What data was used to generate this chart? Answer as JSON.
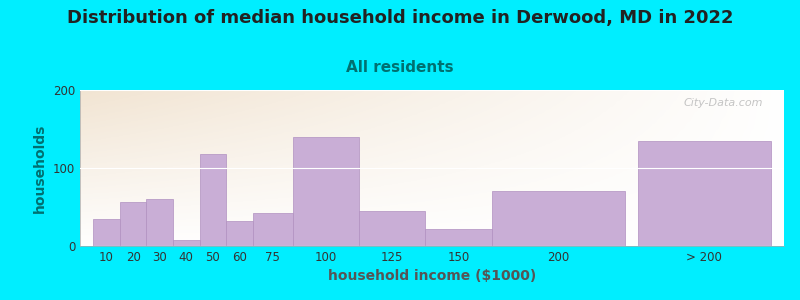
{
  "title": "Distribution of median household income in Derwood, MD in 2022",
  "subtitle": "All residents",
  "xlabel": "household income ($1000)",
  "ylabel": "households",
  "background_outer": "#00eeff",
  "bar_color": "#c9aed6",
  "bar_edge_color": "#b090c0",
  "categories": [
    "10",
    "20",
    "30",
    "40",
    "50",
    "60",
    "75",
    "100",
    "125",
    "150",
    "200",
    "> 200"
  ],
  "values": [
    35,
    57,
    60,
    8,
    118,
    32,
    42,
    140,
    45,
    22,
    70,
    135
  ],
  "widths": [
    10,
    10,
    10,
    10,
    10,
    10,
    15,
    25,
    25,
    25,
    50,
    50
  ],
  "lefts": [
    5,
    15,
    25,
    35,
    45,
    55,
    65,
    80,
    105,
    130,
    155,
    210
  ],
  "xlim": [
    0,
    265
  ],
  "ylim": [
    0,
    200
  ],
  "yticks": [
    0,
    100,
    200
  ],
  "title_fontsize": 13,
  "subtitle_fontsize": 11,
  "axis_label_fontsize": 10,
  "tick_fontsize": 8.5,
  "watermark_text": "City-Data.com",
  "title_color": "#222222",
  "subtitle_color": "#007070",
  "ylabel_color": "#007070",
  "xlabel_color": "#555555"
}
